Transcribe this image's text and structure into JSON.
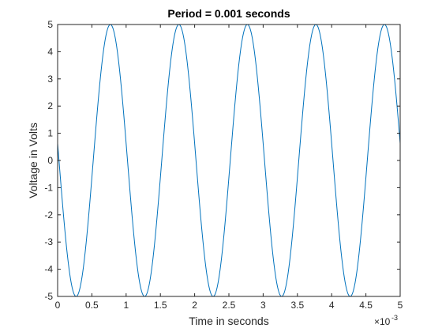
{
  "chart_data": {
    "type": "line",
    "title": "Period = 0.001 seconds",
    "xlabel": "Time in seconds",
    "ylabel": "Voltage in Volts",
    "x_exponent_base": "×10",
    "x_exponent_power": "-3",
    "xlim": [
      0,
      5
    ],
    "ylim": [
      -5,
      5
    ],
    "xticks": [
      0,
      0.5,
      1,
      1.5,
      2,
      2.5,
      3,
      3.5,
      4,
      4.5,
      5
    ],
    "xtick_labels": [
      "0",
      "0.5",
      "1",
      "1.5",
      "2",
      "2.5",
      "3",
      "3.5",
      "4",
      "4.5",
      "5"
    ],
    "yticks": [
      -5,
      -4,
      -3,
      -2,
      -1,
      0,
      1,
      2,
      3,
      4,
      5
    ],
    "ytick_labels": [
      "-5",
      "-4",
      "-3",
      "-2",
      "-1",
      "0",
      "1",
      "2",
      "3",
      "4",
      "5"
    ],
    "grid": false,
    "series": [
      {
        "color": "#0072BD",
        "amplitude": 5,
        "period": 1,
        "first_peak_x": 0.77,
        "start_x": 0,
        "end_x": 5
      }
    ]
  }
}
